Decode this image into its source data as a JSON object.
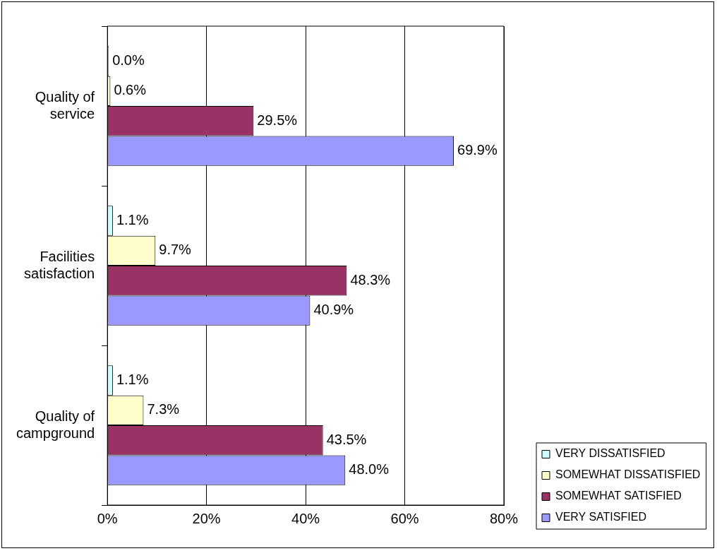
{
  "chart_data": {
    "type": "bar",
    "orientation": "horizontal",
    "categories": [
      "Quality of service",
      "Facilities satisfaction",
      "Quality of campground"
    ],
    "series": [
      {
        "name": "VERY DISSATISFIED",
        "color": "#ccffff",
        "values": [
          0.0,
          1.1,
          1.1
        ],
        "value_labels": [
          "0.0%",
          "1.1%",
          "1.1%"
        ]
      },
      {
        "name": "SOMEWHAT DISSATISFIED",
        "color": "#ffffcc",
        "values": [
          0.6,
          9.7,
          7.3
        ],
        "value_labels": [
          "0.6%",
          "9.7%",
          "7.3%"
        ]
      },
      {
        "name": "SOMEWHAT SATISFIED",
        "color": "#993366",
        "values": [
          29.5,
          48.3,
          43.5
        ],
        "value_labels": [
          "29.5%",
          "48.3%",
          "43.5%"
        ]
      },
      {
        "name": "VERY SATISFIED",
        "color": "#9999ff",
        "values": [
          69.9,
          40.9,
          48.0
        ],
        "value_labels": [
          "69.9%",
          "40.9%",
          "48.0%"
        ]
      }
    ],
    "xlim": [
      0,
      80
    ],
    "xticks": [
      {
        "value": 0,
        "label": "0%"
      },
      {
        "value": 20,
        "label": "20%"
      },
      {
        "value": 40,
        "label": "40%"
      },
      {
        "value": 60,
        "label": "60%"
      },
      {
        "value": 80,
        "label": "80%"
      }
    ],
    "grid": "x",
    "legend": "bottom right"
  }
}
